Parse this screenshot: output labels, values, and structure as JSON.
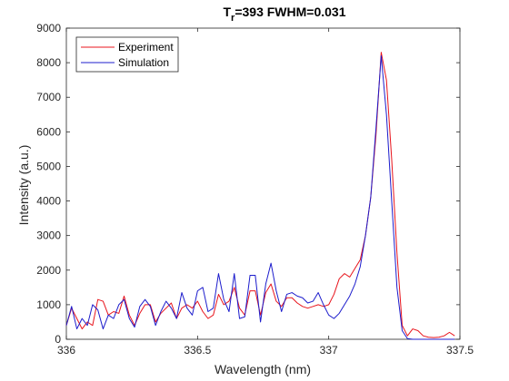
{
  "chart_data": {
    "type": "line",
    "title": {
      "main": "T",
      "subscript": "r",
      "rest": "=393 FWHM=0.031"
    },
    "xlabel": "Wavelength (nm)",
    "ylabel": "Intensity (a.u.)",
    "xlim": [
      336,
      337.5
    ],
    "ylim": [
      0,
      9000
    ],
    "xticks": [
      336,
      336.5,
      337,
      337.5
    ],
    "xtick_labels": [
      "336",
      "336.5",
      "337",
      "337.5"
    ],
    "yticks": [
      0,
      1000,
      2000,
      3000,
      4000,
      5000,
      6000,
      7000,
      8000,
      9000
    ],
    "ytick_labels": [
      "0",
      "1000",
      "2000",
      "3000",
      "4000",
      "5000",
      "6000",
      "7000",
      "8000",
      "9000"
    ],
    "grid": false,
    "legend_position": "top-left",
    "series": [
      {
        "name": "Experiment",
        "color": "#e8141c",
        "x": [
          336.0,
          336.02,
          336.04,
          336.06,
          336.08,
          336.1,
          336.12,
          336.14,
          336.16,
          336.18,
          336.2,
          336.22,
          336.24,
          336.26,
          336.28,
          336.3,
          336.32,
          336.34,
          336.36,
          336.38,
          336.4,
          336.42,
          336.44,
          336.46,
          336.48,
          336.5,
          336.52,
          336.54,
          336.56,
          336.58,
          336.6,
          336.62,
          336.64,
          336.66,
          336.68,
          336.7,
          336.72,
          336.74,
          336.76,
          336.78,
          336.8,
          336.82,
          336.84,
          336.86,
          336.88,
          336.9,
          336.92,
          336.94,
          336.96,
          336.98,
          337.0,
          337.02,
          337.04,
          337.06,
          337.08,
          337.1,
          337.12,
          337.14,
          337.16,
          337.18,
          337.2,
          337.22,
          337.24,
          337.26,
          337.28,
          337.3,
          337.32,
          337.34,
          337.36,
          337.38,
          337.4,
          337.42,
          337.44,
          337.46,
          337.48
        ],
        "y": [
          400,
          900,
          600,
          300,
          500,
          400,
          1150,
          1100,
          700,
          800,
          750,
          1250,
          700,
          400,
          750,
          1000,
          1000,
          500,
          750,
          900,
          1050,
          600,
          900,
          1000,
          900,
          1100,
          800,
          600,
          700,
          1300,
          1000,
          1100,
          1500,
          900,
          700,
          1400,
          1400,
          700,
          1350,
          1600,
          1100,
          950,
          1200,
          1200,
          1050,
          950,
          900,
          950,
          1000,
          950,
          1000,
          1300,
          1750,
          1900,
          1800,
          2050,
          2300,
          3000,
          4100,
          5900,
          8300,
          7500,
          5200,
          2500,
          400,
          100,
          300,
          250,
          100,
          60,
          50,
          60,
          100,
          200,
          100
        ]
      },
      {
        "name": "Simulation",
        "color": "#1c1ccc",
        "x": [
          336.0,
          336.02,
          336.04,
          336.06,
          336.08,
          336.1,
          336.12,
          336.14,
          336.16,
          336.18,
          336.2,
          336.22,
          336.24,
          336.26,
          336.28,
          336.3,
          336.32,
          336.34,
          336.36,
          336.38,
          336.4,
          336.42,
          336.44,
          336.46,
          336.48,
          336.5,
          336.52,
          336.54,
          336.56,
          336.58,
          336.6,
          336.62,
          336.64,
          336.66,
          336.68,
          336.7,
          336.72,
          336.74,
          336.76,
          336.78,
          336.8,
          336.82,
          336.84,
          336.86,
          336.88,
          336.9,
          336.92,
          336.94,
          336.96,
          336.98,
          337.0,
          337.02,
          337.04,
          337.06,
          337.08,
          337.1,
          337.12,
          337.14,
          337.16,
          337.18,
          337.2,
          337.22,
          337.24,
          337.26,
          337.28,
          337.3,
          337.32,
          337.34,
          337.36,
          337.38,
          337.4,
          337.42,
          337.44,
          337.46,
          337.48
        ],
        "y": [
          400,
          950,
          300,
          600,
          400,
          1000,
          850,
          300,
          700,
          600,
          1000,
          1150,
          600,
          350,
          950,
          1150,
          950,
          400,
          800,
          1100,
          900,
          600,
          1350,
          900,
          700,
          1400,
          1500,
          800,
          900,
          1900,
          1150,
          800,
          1900,
          600,
          650,
          1850,
          1850,
          500,
          1600,
          2200,
          1400,
          800,
          1300,
          1350,
          1250,
          1200,
          1050,
          1100,
          1350,
          1000,
          700,
          600,
          750,
          1000,
          1250,
          1600,
          2100,
          3000,
          4100,
          6100,
          8200,
          6500,
          4000,
          1500,
          250,
          20,
          0,
          0,
          0,
          0,
          0,
          0,
          0,
          0,
          0
        ]
      }
    ]
  }
}
